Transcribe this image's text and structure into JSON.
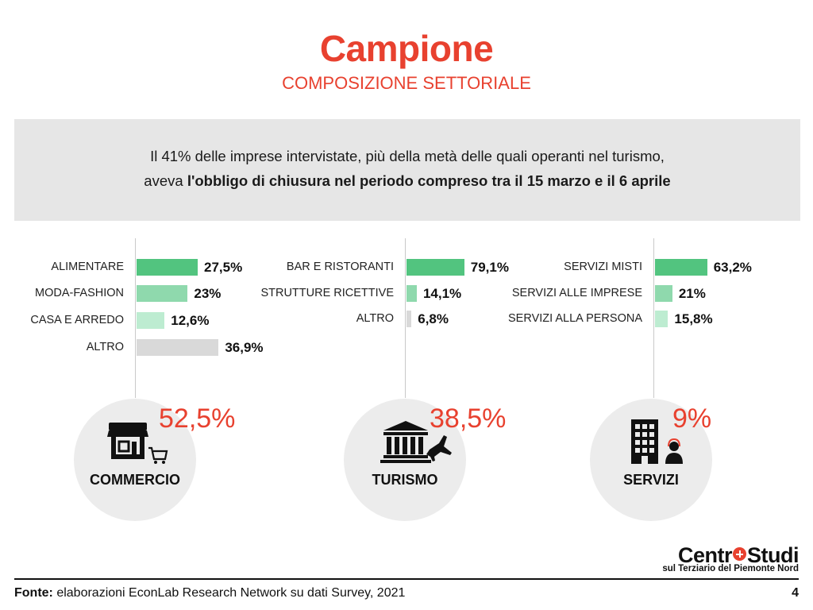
{
  "title": "Campione",
  "subtitle": "COMPOSIZIONE SETTORIALE",
  "banner": {
    "line1": "Il 41% delle imprese intervistate, più della metà delle quali operanti nel turismo,",
    "line2_prefix": "aveva ",
    "line2_bold": "l'obbligo di chiusura nel periodo compreso tra il 15 marzo e il 6 aprile"
  },
  "colors": {
    "accent": "#e8412f",
    "bar_dark": "#52c47f",
    "bar_mid": "#8fd9ad",
    "bar_light": "#bdecd1",
    "bar_grey": "#d9d9d9",
    "circle_bg": "#ececec",
    "banner_bg": "#e6e6e6"
  },
  "chart_data": [
    {
      "type": "bar",
      "orientation": "horizontal",
      "sector": "COMMERCIO",
      "sector_share": "52,5%",
      "icon": "shop-cart-icon",
      "categories": [
        "ALIMENTARE",
        "MODA-FASHION",
        "CASA E ARREDO",
        "ALTRO"
      ],
      "values": [
        27.5,
        23,
        12.6,
        36.9
      ],
      "labels": [
        "27,5%",
        "23%",
        "12,6%",
        "36,9%"
      ],
      "bar_colors": [
        "#52c47f",
        "#8fd9ad",
        "#bdecd1",
        "#d9d9d9"
      ]
    },
    {
      "type": "bar",
      "orientation": "horizontal",
      "sector": "TURISMO",
      "sector_share": "38,5%",
      "icon": "museum-plane-icon",
      "categories": [
        "BAR E RISTORANTI",
        "STRUTTURE RICETTIVE",
        "ALTRO"
      ],
      "values": [
        79.1,
        14.1,
        6.8
      ],
      "labels": [
        "79,1%",
        "14,1%",
        "6,8%"
      ],
      "bar_colors": [
        "#52c47f",
        "#8fd9ad",
        "#d9d9d9"
      ]
    },
    {
      "type": "bar",
      "orientation": "horizontal",
      "sector": "SERVIZI",
      "sector_share": "9%",
      "icon": "building-person-icon",
      "categories": [
        "SERVIZI MISTI",
        "SERVIZI ALLE IMPRESE",
        "SERVIZI ALLA PERSONA"
      ],
      "values": [
        63.2,
        21,
        15.8
      ],
      "labels": [
        "63,2%",
        "21%",
        "15,8%"
      ],
      "bar_colors": [
        "#52c47f",
        "#8fd9ad",
        "#bdecd1"
      ]
    }
  ],
  "logo": {
    "main_left": "Centr",
    "main_right": "Studi",
    "sub": "sul Terziario del Piemonte Nord"
  },
  "footer": {
    "source_label": "Fonte:",
    "source_text": " elaborazioni EconLab Research Network su dati Survey, 2021",
    "page": "4"
  }
}
